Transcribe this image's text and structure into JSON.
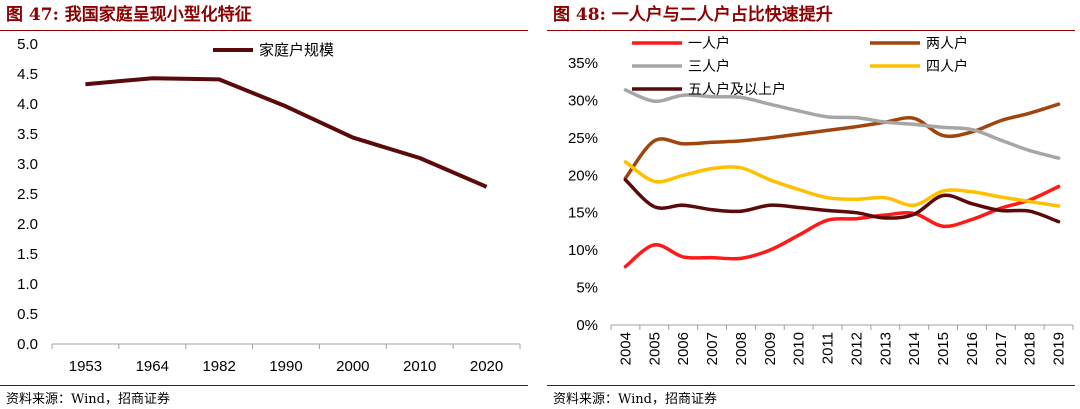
{
  "left_panel": {
    "title": "图 47:  我国家庭呈现小型化特征",
    "source": "资料来源：Wind，招商证券"
  },
  "right_panel": {
    "title": "图 48:  一人户与二人户占比快速提升",
    "source": "资料来源：Wind，招商证券"
  },
  "colors": {
    "title": "#8B0000",
    "household_size": "#5A0A0A",
    "one_person": "#FF1A1A",
    "two_person": "#A0450E",
    "three_person": "#A6A6A6",
    "four_person": "#FFC000",
    "five_plus": "#5A0A0A"
  },
  "chart_data": [
    {
      "type": "line",
      "categories": [
        "1953",
        "1964",
        "1982",
        "1990",
        "2000",
        "2010",
        "2020"
      ],
      "series": [
        {
          "name": "家庭户规模",
          "values": [
            4.33,
            4.43,
            4.41,
            3.96,
            3.44,
            3.1,
            2.62
          ]
        }
      ],
      "ylim": [
        0,
        5.0
      ],
      "yticks": [
        "0.0",
        "0.5",
        "1.0",
        "1.5",
        "2.0",
        "2.5",
        "3.0",
        "3.5",
        "4.0",
        "4.5",
        "5.0"
      ],
      "legend": "top-center",
      "grid": false
    },
    {
      "type": "line",
      "categories": [
        "2004",
        "2005",
        "2006",
        "2007",
        "2008",
        "2009",
        "2010",
        "2011",
        "2012",
        "2013",
        "2014",
        "2015",
        "2016",
        "2017",
        "2018",
        "2019"
      ],
      "series": [
        {
          "name": "一人户",
          "values": [
            7.8,
            10.7,
            9.1,
            9.0,
            8.9,
            10.0,
            12.0,
            14.0,
            14.2,
            14.7,
            14.9,
            13.2,
            14.1,
            15.6,
            16.7,
            18.5
          ]
        },
        {
          "name": "两人户",
          "values": [
            19.6,
            24.6,
            24.2,
            24.4,
            24.6,
            25.0,
            25.5,
            26.0,
            26.5,
            27.1,
            27.6,
            25.3,
            25.8,
            27.3,
            28.3,
            29.5
          ]
        },
        {
          "name": "三人户",
          "values": [
            31.4,
            29.9,
            30.7,
            30.5,
            30.4,
            29.5,
            28.6,
            27.8,
            27.7,
            27.1,
            26.8,
            26.4,
            26.1,
            24.7,
            23.3,
            22.3
          ]
        },
        {
          "name": "四人户",
          "values": [
            21.8,
            19.2,
            20.0,
            20.9,
            21.0,
            19.4,
            18.1,
            17.0,
            16.8,
            17.0,
            16.0,
            17.9,
            17.8,
            17.1,
            16.5,
            15.9
          ]
        },
        {
          "name": "五人户及以上户",
          "values": [
            19.4,
            15.8,
            16.0,
            15.4,
            15.2,
            16.0,
            15.7,
            15.3,
            15.0,
            14.3,
            14.8,
            17.3,
            16.2,
            15.3,
            15.2,
            13.8
          ]
        }
      ],
      "ylim": [
        0,
        35
      ],
      "yticks": [
        "0%",
        "5%",
        "10%",
        "15%",
        "20%",
        "25%",
        "30%",
        "35%"
      ],
      "legend": "top",
      "grid": false
    }
  ]
}
